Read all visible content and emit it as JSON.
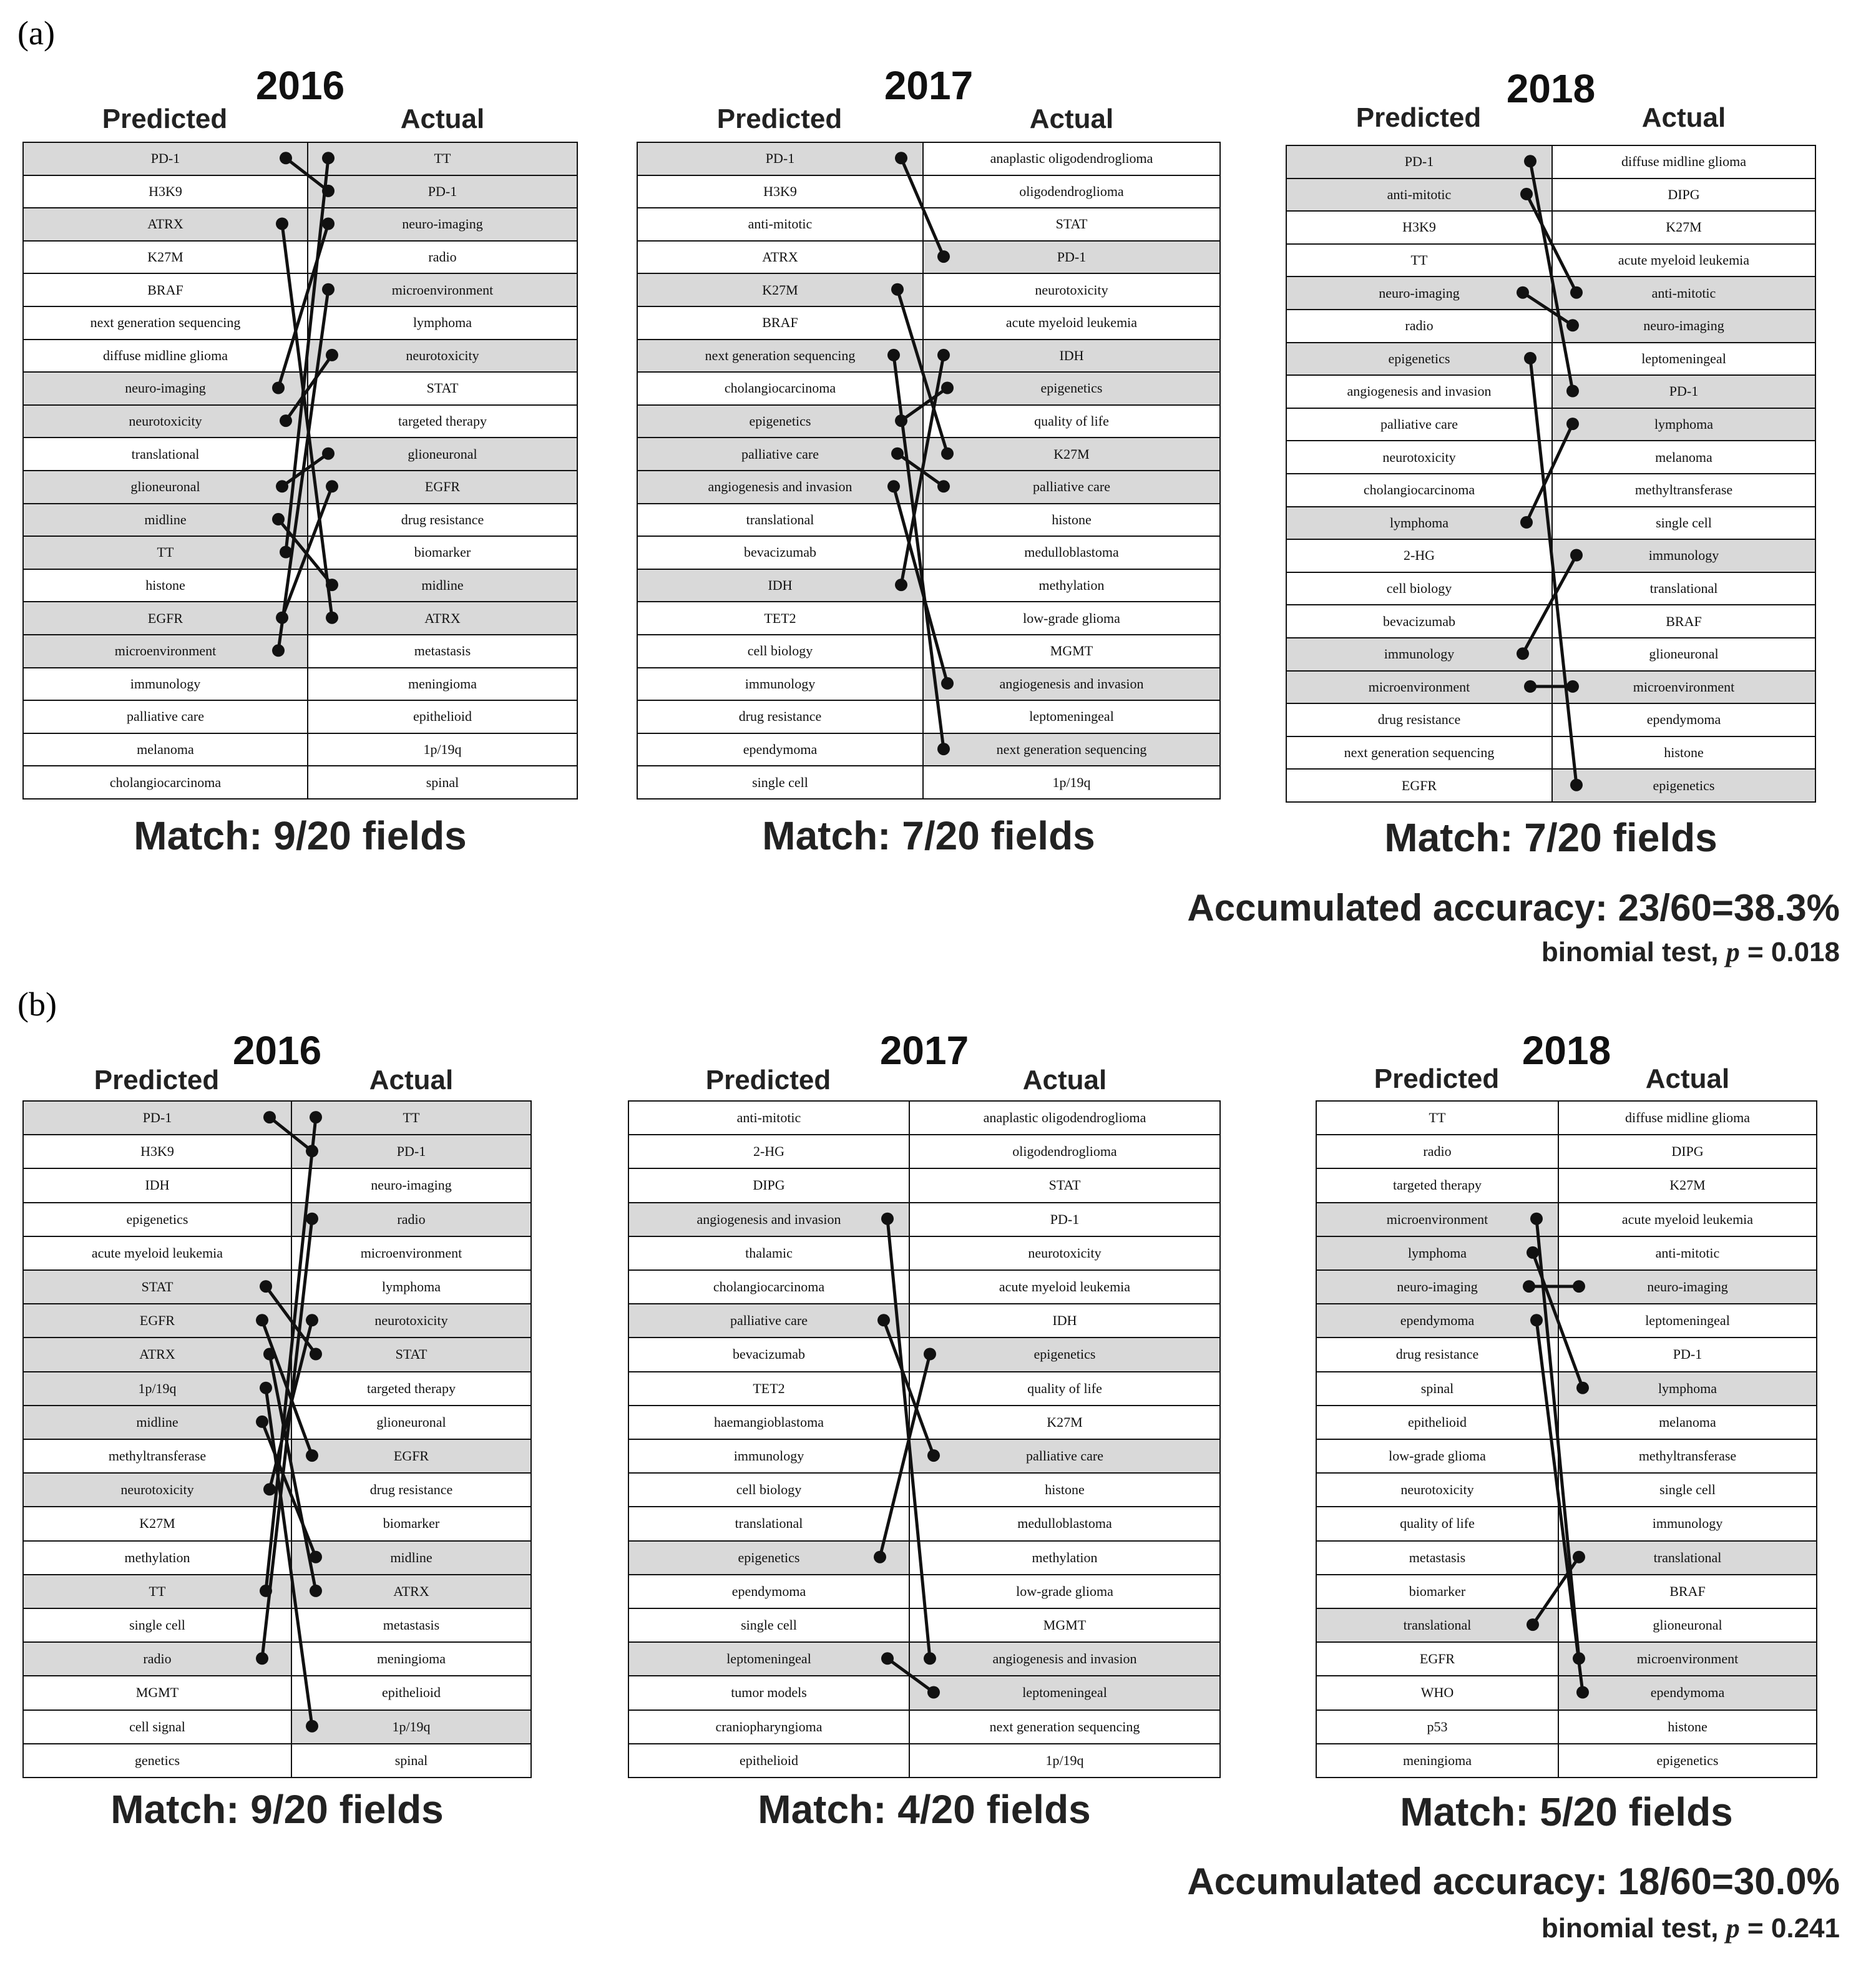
{
  "panels": [
    {
      "label": "(a)",
      "accuracy": "Accumulated accuracy: 23/60=38.3%",
      "binomial_prefix": "binomial test, ",
      "binomial_var": "p",
      "binomial_value": " = 0.018",
      "tables": [
        {
          "year": "2016",
          "predicted_head": "Predicted",
          "actual_head": "Actual",
          "match": "Match: 9/20 fields",
          "predicted": [
            "PD-1",
            "H3K9",
            "ATRX",
            "K27M",
            "BRAF",
            "next generation sequencing",
            "diffuse midline glioma",
            "neuro-imaging",
            "neurotoxicity",
            "translational",
            "glioneuronal",
            "midline",
            "TT",
            "histone",
            "EGFR",
            "microenvironment",
            "immunology",
            "palliative care",
            "melanoma",
            "cholangiocarcinoma"
          ],
          "actual": [
            "TT",
            "PD-1",
            "neuro-imaging",
            "radio",
            "microenvironment",
            "lymphoma",
            "neurotoxicity",
            "STAT",
            "targeted therapy",
            "glioneuronal",
            "EGFR",
            "drug resistance",
            "biomarker",
            "midline",
            "ATRX",
            "metastasis",
            "meningioma",
            "epithelioid",
            "1p/19q",
            "spinal"
          ],
          "links": [
            [
              0,
              1
            ],
            [
              2,
              14
            ],
            [
              7,
              2
            ],
            [
              8,
              6
            ],
            [
              10,
              9
            ],
            [
              11,
              13
            ],
            [
              12,
              0
            ],
            [
              14,
              10
            ],
            [
              15,
              4
            ]
          ]
        },
        {
          "year": "2017",
          "predicted_head": "Predicted",
          "actual_head": "Actual",
          "match": "Match: 7/20 fields",
          "predicted": [
            "PD-1",
            "H3K9",
            "anti-mitotic",
            "ATRX",
            "K27M",
            "BRAF",
            "next generation sequencing",
            "cholangiocarcinoma",
            "epigenetics",
            "palliative care",
            "angiogenesis and invasion",
            "translational",
            "bevacizumab",
            "IDH",
            "TET2",
            "cell biology",
            "immunology",
            "drug resistance",
            "ependymoma",
            "single cell"
          ],
          "actual": [
            "anaplastic oligodendroglioma",
            "oligodendroglioma",
            "STAT",
            "PD-1",
            "neurotoxicity",
            "acute myeloid leukemia",
            "IDH",
            "epigenetics",
            "quality of life",
            "K27M",
            "palliative care",
            "histone",
            "medulloblastoma",
            "methylation",
            "low-grade glioma",
            "MGMT",
            "angiogenesis and invasion",
            "leptomeningeal",
            "next generation sequencing",
            "1p/19q"
          ],
          "links": [
            [
              0,
              3
            ],
            [
              4,
              9
            ],
            [
              6,
              18
            ],
            [
              8,
              7
            ],
            [
              9,
              10
            ],
            [
              10,
              16
            ],
            [
              13,
              6
            ]
          ]
        },
        {
          "year": "2018",
          "predicted_head": "Predicted",
          "actual_head": "Actual",
          "match": "Match: 7/20 fields",
          "predicted": [
            "PD-1",
            "anti-mitotic",
            "H3K9",
            "TT",
            "neuro-imaging",
            "radio",
            "epigenetics",
            "angiogenesis and invasion",
            "palliative care",
            "neurotoxicity",
            "cholangiocarcinoma",
            "lymphoma",
            "2-HG",
            "cell biology",
            "bevacizumab",
            "immunology",
            "microenvironment",
            "drug resistance",
            "next generation sequencing",
            "EGFR"
          ],
          "actual": [
            "diffuse midline glioma",
            "DIPG",
            "K27M",
            "acute myeloid leukemia",
            "anti-mitotic",
            "neuro-imaging",
            "leptomeningeal",
            "PD-1",
            "lymphoma",
            "melanoma",
            "methyltransferase",
            "single cell",
            "immunology",
            "translational",
            "BRAF",
            "glioneuronal",
            "microenvironment",
            "ependymoma",
            "histone",
            "epigenetics"
          ],
          "links": [
            [
              0,
              7
            ],
            [
              1,
              4
            ],
            [
              4,
              5
            ],
            [
              6,
              19
            ],
            [
              11,
              8
            ],
            [
              15,
              12
            ],
            [
              16,
              16
            ]
          ]
        }
      ]
    },
    {
      "label": "(b)",
      "accuracy": "Accumulated accuracy: 18/60=30.0%",
      "binomial_prefix": "binomial test, ",
      "binomial_var": "p",
      "binomial_value": " = 0.241",
      "tables": [
        {
          "year": "2016",
          "predicted_head": "Predicted",
          "actual_head": "Actual",
          "match": "Match: 9/20 fields",
          "predicted": [
            "PD-1",
            "H3K9",
            "IDH",
            "epigenetics",
            "acute myeloid leukemia",
            "STAT",
            "EGFR",
            "ATRX",
            "1p/19q",
            "midline",
            "methyltransferase",
            "neurotoxicity",
            "K27M",
            "methylation",
            "TT",
            "single cell",
            "radio",
            "MGMT",
            "cell signal",
            "genetics"
          ],
          "actual": [
            "TT",
            "PD-1",
            "neuro-imaging",
            "radio",
            "microenvironment",
            "lymphoma",
            "neurotoxicity",
            "STAT",
            "targeted therapy",
            "glioneuronal",
            "EGFR",
            "drug resistance",
            "biomarker",
            "midline",
            "ATRX",
            "metastasis",
            "meningioma",
            "epithelioid",
            "1p/19q",
            "spinal"
          ],
          "links": [
            [
              0,
              1
            ],
            [
              5,
              7
            ],
            [
              6,
              10
            ],
            [
              7,
              14
            ],
            [
              8,
              18
            ],
            [
              9,
              13
            ],
            [
              11,
              6
            ],
            [
              14,
              0
            ],
            [
              16,
              3
            ]
          ]
        },
        {
          "year": "2017",
          "predicted_head": "Predicted",
          "actual_head": "Actual",
          "match": "Match: 4/20 fields",
          "predicted": [
            "anti-mitotic",
            "2-HG",
            "DIPG",
            "angiogenesis and invasion",
            "thalamic",
            "cholangiocarcinoma",
            "palliative care",
            "bevacizumab",
            "TET2",
            "haemangioblastoma",
            "immunology",
            "cell biology",
            "translational",
            "epigenetics",
            "ependymoma",
            "single cell",
            "leptomeningeal",
            "tumor models",
            "craniopharyngioma",
            "epithelioid"
          ],
          "actual": [
            "anaplastic oligodendroglioma",
            "oligodendroglioma",
            "STAT",
            "PD-1",
            "neurotoxicity",
            "acute myeloid leukemia",
            "IDH",
            "epigenetics",
            "quality of life",
            "K27M",
            "palliative care",
            "histone",
            "medulloblastoma",
            "methylation",
            "low-grade glioma",
            "MGMT",
            "angiogenesis and invasion",
            "leptomeningeal",
            "next generation sequencing",
            "1p/19q"
          ],
          "links": [
            [
              3,
              16
            ],
            [
              6,
              10
            ],
            [
              13,
              7
            ],
            [
              16,
              17
            ]
          ]
        },
        {
          "year": "2018",
          "predicted_head": "Predicted",
          "actual_head": "Actual",
          "match": "Match: 5/20 fields",
          "predicted": [
            "TT",
            "radio",
            "targeted therapy",
            "microenvironment",
            "lymphoma",
            "neuro-imaging",
            "ependymoma",
            "drug resistance",
            "spinal",
            "epithelioid",
            "low-grade glioma",
            "neurotoxicity",
            "quality of life",
            "metastasis",
            "biomarker",
            "translational",
            "EGFR",
            "WHO",
            "p53",
            "meningioma"
          ],
          "actual": [
            "diffuse midline glioma",
            "DIPG",
            "K27M",
            "acute myeloid leukemia",
            "anti-mitotic",
            "neuro-imaging",
            "leptomeningeal",
            "PD-1",
            "lymphoma",
            "melanoma",
            "methyltransferase",
            "single cell",
            "immunology",
            "translational",
            "BRAF",
            "glioneuronal",
            "microenvironment",
            "ependymoma",
            "histone",
            "epigenetics"
          ],
          "links": [
            [
              3,
              16
            ],
            [
              4,
              8
            ],
            [
              5,
              5
            ],
            [
              6,
              17
            ],
            [
              15,
              13
            ]
          ]
        }
      ]
    }
  ]
}
